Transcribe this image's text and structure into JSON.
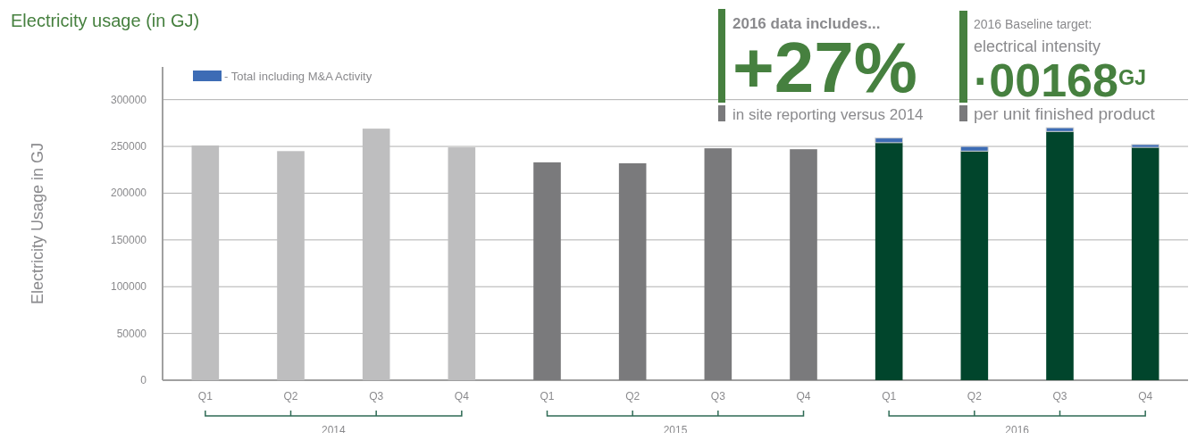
{
  "chart_data": {
    "type": "bar",
    "title": "Electricity usage (in GJ)",
    "ylabel": "Electricity Usage in GJ",
    "categories": [
      "Q1",
      "Q2",
      "Q3",
      "Q4",
      "Q1",
      "Q2",
      "Q3",
      "Q4",
      "Q1",
      "Q2",
      "Q3",
      "Q4"
    ],
    "stacked": true,
    "series": [
      {
        "colors": [
          "#bebebf",
          "#bebebf",
          "#bebebf",
          "#bebebf",
          "#7a7a7c",
          "#7a7a7c",
          "#7a7a7c",
          "#7a7a7c",
          "#01452c",
          "#01452c",
          "#01452c",
          "#01452c"
        ],
        "values": [
          251000,
          245000,
          269000,
          249000,
          233000,
          232000,
          248000,
          247000,
          254000,
          245000,
          266000,
          249000
        ]
      },
      {
        "name": "- Total including M&A Activity",
        "color": "#3d6cb5",
        "values": [
          null,
          null,
          null,
          null,
          null,
          null,
          null,
          null,
          5000,
          5000,
          4000,
          3000
        ]
      }
    ],
    "ylim": [
      0,
      335000
    ],
    "yticks": [
      0,
      50000,
      100000,
      150000,
      200000,
      250000,
      300000
    ],
    "grid": "y",
    "legend": "top left",
    "annotations": [
      "2014",
      "2015",
      "2016",
      "2016 data includes...",
      "+27%",
      "in site reporting versus 2014",
      "2016 Baseline target:",
      "electrical intensity",
      "·00168$^{GJ}$",
      "per unit finished product"
    ]
  }
}
